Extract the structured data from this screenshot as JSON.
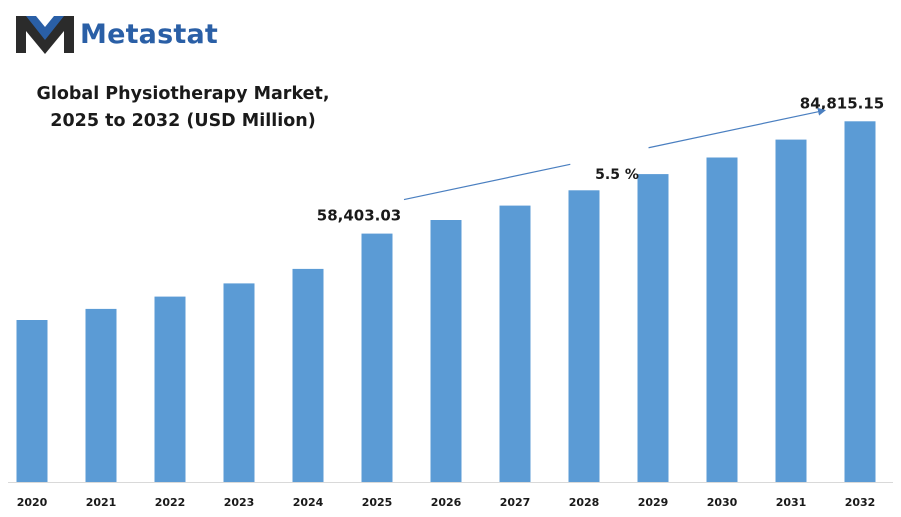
{
  "brand": {
    "name": "Metastat",
    "color": "#2a5fa6",
    "logo_icon": "metastat-m-logo-icon"
  },
  "chart_data": {
    "type": "bar",
    "title": "Global Physiotherapy Market, 2025 to 2032 (USD Million)",
    "title_lines": [
      "Global Physiotherapy Market,",
      "2025 to 2032 (USD Million)"
    ],
    "xlabel": "",
    "ylabel": "",
    "categories": [
      "2020",
      "2021",
      "2022",
      "2023",
      "2024",
      "2025",
      "2026",
      "2027",
      "2028",
      "2029",
      "2030",
      "2031",
      "2032"
    ],
    "values": [
      38100,
      40700,
      43600,
      46700,
      50100,
      58403.03,
      61600,
      65000,
      68600,
      72400,
      76300,
      80500,
      84815.15
    ],
    "ylim": [
      0,
      87000
    ],
    "grid": false,
    "legend": "none",
    "bar_color": "#5b9bd5",
    "annotations": [
      {
        "category": "2025",
        "label": "58,403.03"
      },
      {
        "category": "2032",
        "label": "84,815.15"
      },
      {
        "label": "5.5 %",
        "kind": "growth-arrow",
        "from": "2025",
        "to": "2032"
      }
    ]
  }
}
